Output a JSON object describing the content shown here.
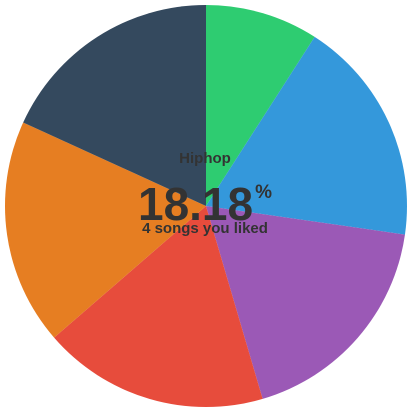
{
  "chart_data": {
    "type": "pie",
    "slices": [
      {
        "label": "",
        "value": 9.09,
        "color": "#2ecc71"
      },
      {
        "label": "",
        "value": 18.18,
        "color": "#3498db"
      },
      {
        "label": "",
        "value": 18.18,
        "color": "#9b59b6"
      },
      {
        "label": "",
        "value": 18.18,
        "color": "#e74c3c"
      },
      {
        "label": "",
        "value": 18.18,
        "color": "#e67e22"
      },
      {
        "label": "Hiphop",
        "value": 18.18,
        "color": "#34495e"
      }
    ],
    "start_angle_deg": 0,
    "legend": "none"
  },
  "center": {
    "genre": "Hiphop",
    "percent": "18.18",
    "percent_sign": "%",
    "subtitle": "4 songs you liked"
  }
}
